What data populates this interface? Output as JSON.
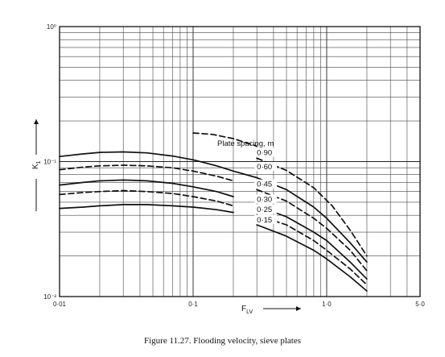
{
  "chart_data": {
    "type": "line",
    "title": "",
    "xlabel": "F",
    "xlabel_sub": "LV",
    "ylabel": "K",
    "ylabel_sub": "1",
    "x_scale": "log",
    "y_scale": "log",
    "xlim": [
      0.01,
      5.0
    ],
    "ylim": [
      0.01,
      1.0
    ],
    "grid": true,
    "x_ticks": [
      0.01,
      0.1,
      1.0,
      5.0
    ],
    "x_tick_labels": [
      "0·01",
      "0·1",
      "1·0",
      "5·0"
    ],
    "y_ticks": [
      1.0,
      0.1,
      0.01
    ],
    "y_tick_labels": [
      "10⁰",
      "10⁻¹",
      "10⁻²"
    ],
    "legend_title": "Plate spacing, m",
    "series": [
      {
        "name": "0·90",
        "line_style": "dashed",
        "x": [
          0.1,
          0.14,
          0.2,
          0.3
        ],
        "y": [
          0.163,
          0.159,
          0.148,
          0.13
        ]
      },
      {
        "name": "0·90",
        "line_style": "dashed",
        "x": [
          0.3,
          0.5,
          0.8,
          1.1,
          1.5,
          2.0
        ],
        "y": [
          0.106,
          0.086,
          0.064,
          0.047,
          0.031,
          0.02
        ]
      },
      {
        "name": "0·60",
        "line_style": "solid",
        "x": [
          0.01,
          0.015,
          0.02,
          0.03,
          0.045,
          0.07,
          0.1,
          0.15,
          0.2,
          0.3,
          0.5,
          0.8,
          1.0,
          1.5,
          2.0
        ],
        "y": [
          0.109,
          0.114,
          0.117,
          0.118,
          0.116,
          0.11,
          0.103,
          0.093,
          0.085,
          0.076,
          0.062,
          0.046,
          0.038,
          0.025,
          0.018
        ]
      },
      {
        "name": "0·45",
        "line_style": "dashed",
        "x": [
          0.01,
          0.015,
          0.02,
          0.03,
          0.045,
          0.07,
          0.1,
          0.15,
          0.2
        ],
        "y": [
          0.087,
          0.091,
          0.093,
          0.094,
          0.093,
          0.09,
          0.085,
          0.078,
          0.072
        ]
      },
      {
        "name": "0·45",
        "line_style": "dashed",
        "x": [
          0.3,
          0.5,
          0.8,
          1.0,
          1.5,
          2.0
        ],
        "y": [
          0.062,
          0.051,
          0.038,
          0.032,
          0.022,
          0.0155
        ]
      },
      {
        "name": "0·30",
        "line_style": "solid",
        "x": [
          0.01,
          0.015,
          0.02,
          0.03,
          0.045,
          0.07,
          0.1,
          0.15,
          0.2
        ],
        "y": [
          0.067,
          0.07,
          0.072,
          0.073,
          0.072,
          0.069,
          0.065,
          0.06,
          0.055
        ]
      },
      {
        "name": "0·30",
        "line_style": "solid",
        "x": [
          0.3,
          0.5,
          0.8,
          1.0,
          1.5,
          2.0
        ],
        "y": [
          0.047,
          0.039,
          0.03,
          0.026,
          0.018,
          0.0135
        ]
      },
      {
        "name": "0·25",
        "line_style": "dashed",
        "x": [
          0.01,
          0.015,
          0.02,
          0.03,
          0.045,
          0.07,
          0.1,
          0.15,
          0.2
        ],
        "y": [
          0.057,
          0.059,
          0.06,
          0.061,
          0.06,
          0.058,
          0.055,
          0.051,
          0.047
        ]
      },
      {
        "name": "0·25",
        "line_style": "dashed",
        "x": [
          0.3,
          0.5,
          0.8,
          1.0,
          1.5,
          2.0
        ],
        "y": [
          0.04,
          0.034,
          0.026,
          0.022,
          0.016,
          0.0122
        ]
      },
      {
        "name": "0·15",
        "line_style": "solid",
        "x": [
          0.01,
          0.015,
          0.02,
          0.03,
          0.045,
          0.07,
          0.1,
          0.15,
          0.2
        ],
        "y": [
          0.045,
          0.046,
          0.047,
          0.048,
          0.048,
          0.047,
          0.046,
          0.044,
          0.042
        ]
      },
      {
        "name": "0·15",
        "line_style": "solid",
        "x": [
          0.3,
          0.5,
          0.8,
          1.0,
          1.5,
          2.0
        ],
        "y": [
          0.034,
          0.028,
          0.022,
          0.019,
          0.014,
          0.011
        ]
      }
    ],
    "curve_labels": [
      {
        "text": "0·90",
        "x": 0.3,
        "y": 0.113
      },
      {
        "text": "0·60",
        "x": 0.3,
        "y": 0.089
      },
      {
        "text": "0·45",
        "x": 0.3,
        "y": 0.066
      },
      {
        "text": "0·30",
        "x": 0.3,
        "y": 0.051
      },
      {
        "text": "0·25",
        "x": 0.3,
        "y": 0.043
      },
      {
        "text": "0·15",
        "x": 0.3,
        "y": 0.036
      }
    ]
  },
  "caption": "Figure 11.27.   Flooding velocity, sieve plates"
}
